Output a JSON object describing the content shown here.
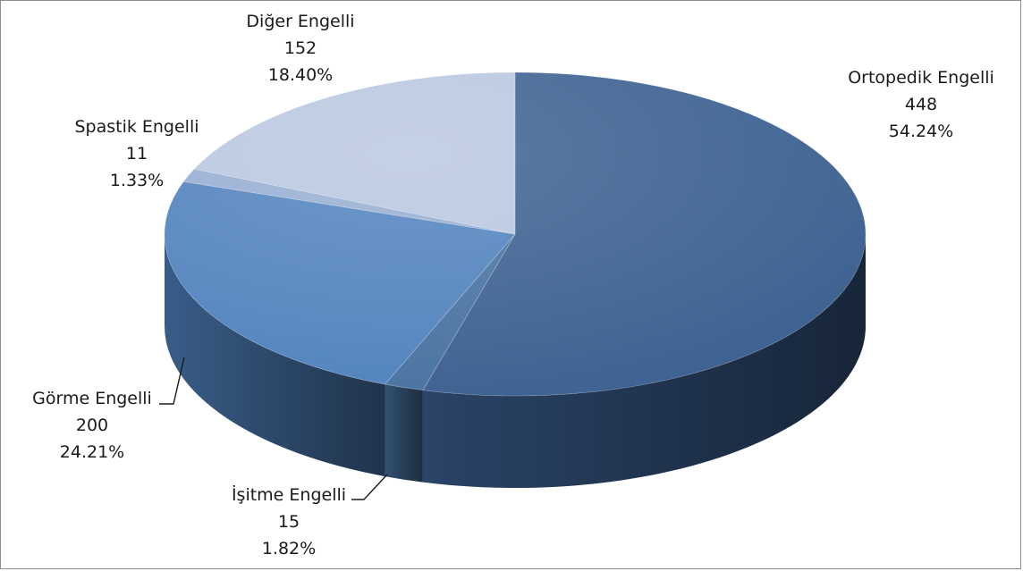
{
  "chart_data": {
    "type": "pie",
    "style": "3d",
    "title": "",
    "legend": "none",
    "slices": [
      {
        "label": "Ortopedik Engelli",
        "value": 448,
        "percent": "54.24%",
        "color": "#3a5f8f"
      },
      {
        "label": "İşitme Engelli",
        "value": 15,
        "percent": "1.82%",
        "color": "#46719f"
      },
      {
        "label": "Görme Engelli",
        "value": 200,
        "percent": "24.21%",
        "color": "#4f81bd"
      },
      {
        "label": "Spastik Engelli",
        "value": 11,
        "percent": "1.33%",
        "color": "#95acd2"
      },
      {
        "label": "Diğer Engelli",
        "value": 152,
        "percent": "18.40%",
        "color": "#b8c6df"
      }
    ]
  }
}
